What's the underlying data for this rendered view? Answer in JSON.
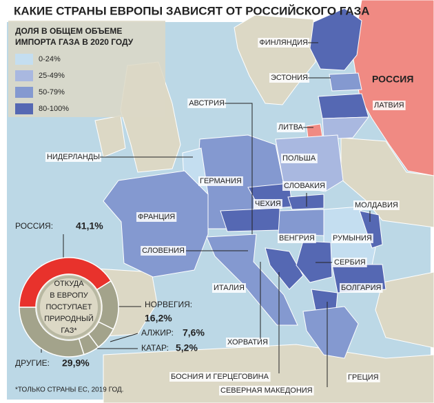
{
  "title": "КАКИЕ СТРАНЫ ЕВРОПЫ ЗАВИСЯТ ОТ РОССИЙСКОГО ГАЗА",
  "legend": {
    "title": [
      "ДОЛЯ В ОБЩЕМ ОБЪЕМЕ",
      "ИМПОРТА ГАЗА В 2020 ГОДУ"
    ],
    "items": [
      {
        "label": "0-24%",
        "color": "#c4def0"
      },
      {
        "label": "25-49%",
        "color": "#a9b8e0"
      },
      {
        "label": "50-79%",
        "color": "#8499d0"
      },
      {
        "label": "80-100%",
        "color": "#5568b3"
      }
    ]
  },
  "countries": [
    "ФИНЛЯНДИЯ",
    "ЭСТОНИЯ",
    "РОССИЯ",
    "ЛАТВИЯ",
    "ЛИТВА",
    "АВСТРИЯ",
    "ПОЛЬША",
    "НИДЕРЛАНДЫ",
    "ГЕРМАНИЯ",
    "СЛОВАКИЯ",
    "ЧЕХИЯ",
    "МОЛДАВИЯ",
    "ФРАНЦИЯ",
    "ВЕНГРИЯ",
    "РУМЫНИЯ",
    "СЛОВЕНИЯ",
    "СЕРБИЯ",
    "ИТАЛИЯ",
    "БОЛГАРИЯ",
    "ХОРВАТИЯ",
    "БОСНИЯ И ГЕРЦЕГОВИНА",
    "ГРЕЦИЯ",
    "СЕВЕРНАЯ МАКЕДОНИЯ"
  ],
  "chart_data": {
    "type": "pie",
    "title": [
      "ОТКУДА",
      "В ЕВРОПУ",
      "ПОСТУПАЕТ",
      "ПРИРОДНЫЙ",
      "ГАЗ*"
    ],
    "categories": [
      "РОССИЯ:",
      "НОРВЕГИЯ:",
      "АЛЖИР:",
      "КАТАР:",
      "ДРУГИЕ:"
    ],
    "values": [
      41.1,
      16.2,
      7.6,
      5.2,
      29.9
    ],
    "value_labels": [
      "41,1%",
      "16,2%",
      "7,6%",
      "5,2%",
      "29,9%"
    ],
    "colors": [
      "#e8322c",
      "#a3a38b",
      "#a3a38b",
      "#a3a38b",
      "#a3a38b"
    ]
  },
  "footnote": "*ТОЛЬКО СТРАНЫ ЕС, 2019 ГОД."
}
